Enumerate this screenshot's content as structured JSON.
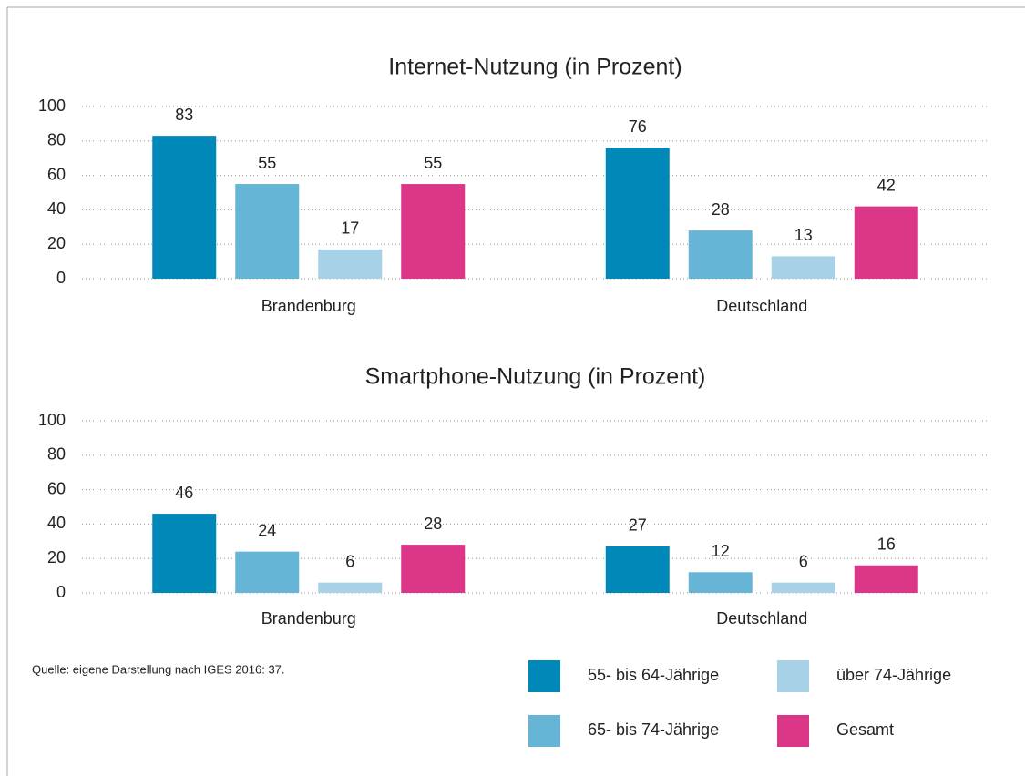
{
  "chart_data": [
    {
      "type": "bar",
      "title": "Internet-Nutzung (in Prozent)",
      "categories": [
        "Brandenburg",
        "Deutschland"
      ],
      "series": [
        {
          "name": "55- bis 64-Jährige",
          "color": "#0088b8",
          "values": [
            83,
            76
          ]
        },
        {
          "name": "65- bis 74-Jährige",
          "color": "#66b5d6",
          "values": [
            55,
            28
          ]
        },
        {
          "name": "über 74-Jährige",
          "color": "#a7d1e6",
          "values": [
            17,
            13
          ]
        },
        {
          "name": "Gesamt",
          "color": "#dc3688",
          "values": [
            55,
            42
          ]
        }
      ],
      "ylim": [
        0,
        100
      ],
      "yticks": [
        0,
        20,
        40,
        60,
        80,
        100
      ],
      "grid": true
    },
    {
      "type": "bar",
      "title": "Smartphone-Nutzung (in Prozent)",
      "categories": [
        "Brandenburg",
        "Deutschland"
      ],
      "series": [
        {
          "name": "55- bis 64-Jährige",
          "color": "#0088b8",
          "values": [
            46,
            27
          ]
        },
        {
          "name": "65- bis 74-Jährige",
          "color": "#66b5d6",
          "values": [
            24,
            12
          ]
        },
        {
          "name": "über 74-Jährige",
          "color": "#a7d1e6",
          "values": [
            6,
            6
          ]
        },
        {
          "name": "Gesamt",
          "color": "#dc3688",
          "values": [
            28,
            16
          ]
        }
      ],
      "ylim": [
        0,
        100
      ],
      "yticks": [
        0,
        20,
        40,
        60,
        80,
        100
      ],
      "grid": true
    }
  ],
  "source": "Quelle: eigene Darstellung nach IGES 2016: 37."
}
